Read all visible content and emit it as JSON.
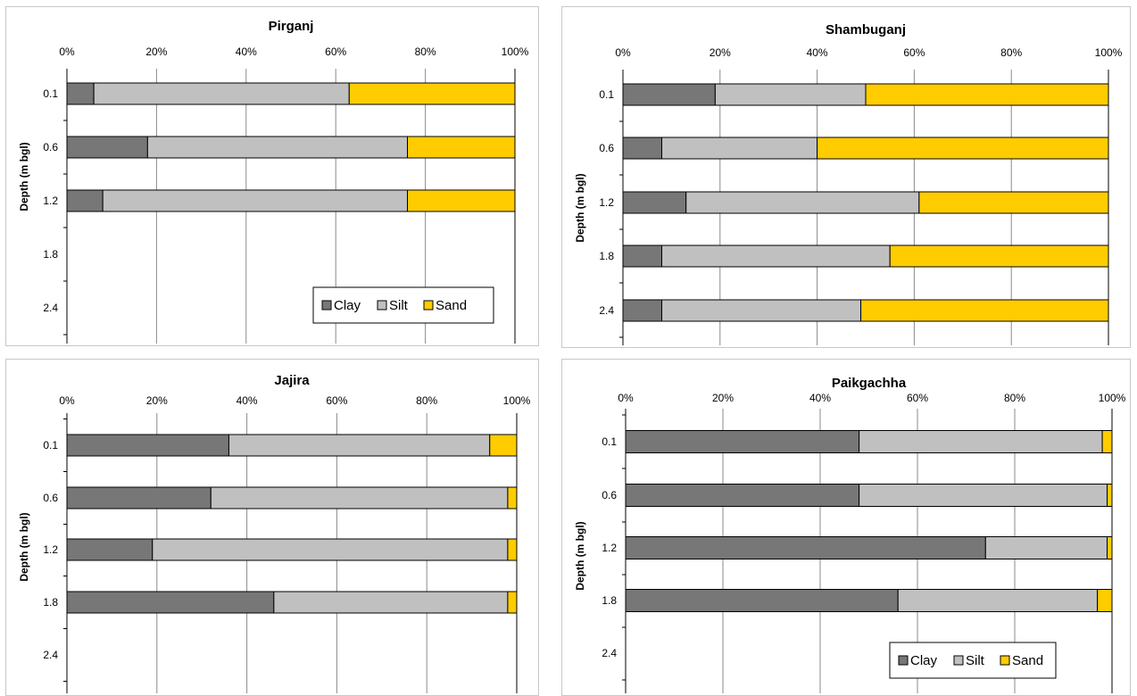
{
  "colors": {
    "clay": "#777777",
    "silt": "#c0c0c0",
    "sand": "#ffcc00"
  },
  "chart_data": [
    {
      "type": "bar",
      "stacked": "percent",
      "orientation": "horizontal",
      "title": "Pirganj",
      "ylabel": "Depth (m bgl)",
      "categories": [
        "0.1",
        "0.6",
        "1.2",
        "1.8",
        "2.4"
      ],
      "xticks": [
        "0%",
        "20%",
        "40%",
        "60%",
        "80%",
        "100%"
      ],
      "xlim": [
        0,
        100
      ],
      "grid": true,
      "legend": "bottom-right",
      "series": [
        {
          "name": "Clay",
          "values": [
            6,
            18,
            8,
            null,
            null
          ]
        },
        {
          "name": "Silt",
          "values": [
            57,
            58,
            68,
            null,
            null
          ]
        },
        {
          "name": "Sand",
          "values": [
            37,
            24,
            24,
            null,
            null
          ]
        }
      ]
    },
    {
      "type": "bar",
      "stacked": "percent",
      "orientation": "horizontal",
      "title": "Shambuganj",
      "ylabel": "Depth (m bgl)",
      "categories": [
        "0.1",
        "0.6",
        "1.2",
        "1.8",
        "2.4"
      ],
      "xticks": [
        "0%",
        "20%",
        "40%",
        "60%",
        "80%",
        "100%"
      ],
      "xlim": [
        0,
        100
      ],
      "grid": true,
      "legend": "none",
      "series": [
        {
          "name": "Clay",
          "values": [
            19,
            8,
            13,
            8,
            8
          ]
        },
        {
          "name": "Silt",
          "values": [
            31,
            32,
            48,
            47,
            41
          ]
        },
        {
          "name": "Sand",
          "values": [
            50,
            60,
            39,
            45,
            51
          ]
        }
      ]
    },
    {
      "type": "bar",
      "stacked": "percent",
      "orientation": "horizontal",
      "title": "Jajira",
      "ylabel": "Depth (m bgl)",
      "categories": [
        "0.1",
        "0.6",
        "1.2",
        "1.8",
        "2.4"
      ],
      "xticks": [
        "0%",
        "20%",
        "40%",
        "60%",
        "80%",
        "100%"
      ],
      "xlim": [
        0,
        100
      ],
      "grid": true,
      "legend": "none",
      "series": [
        {
          "name": "Clay",
          "values": [
            36,
            32,
            19,
            46,
            null
          ]
        },
        {
          "name": "Silt",
          "values": [
            58,
            66,
            79,
            52,
            null
          ]
        },
        {
          "name": "Sand",
          "values": [
            6,
            2,
            2,
            2,
            null
          ]
        }
      ]
    },
    {
      "type": "bar",
      "stacked": "percent",
      "orientation": "horizontal",
      "title": "Paikgachha",
      "ylabel": "Depth (m bgl)",
      "categories": [
        "0.1",
        "0.6",
        "1.2",
        "1.8",
        "2.4"
      ],
      "xticks": [
        "0%",
        "20%",
        "40%",
        "60%",
        "80%",
        "100%"
      ],
      "xlim": [
        0,
        100
      ],
      "grid": true,
      "legend": "bottom-right",
      "series": [
        {
          "name": "Clay",
          "values": [
            48,
            48,
            74,
            56,
            null
          ]
        },
        {
          "name": "Silt",
          "values": [
            50,
            51,
            25,
            41,
            null
          ]
        },
        {
          "name": "Sand",
          "values": [
            2,
            1,
            1,
            3,
            null
          ]
        }
      ]
    }
  ]
}
